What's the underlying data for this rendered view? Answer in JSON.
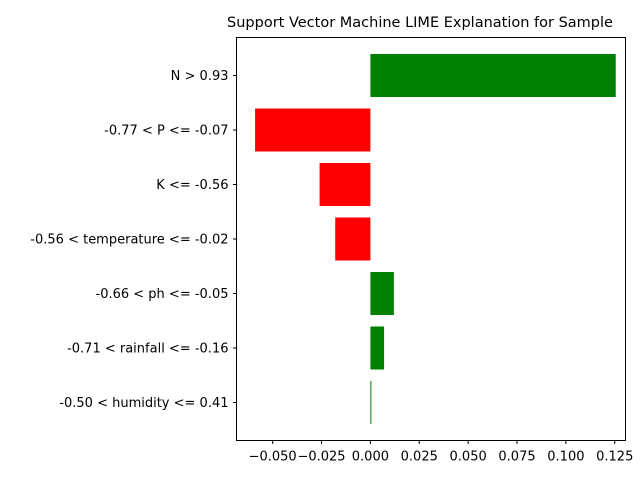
{
  "chart_data": {
    "type": "bar",
    "orientation": "horizontal",
    "title": "Support Vector Machine LIME Explanation for Sample",
    "xlabel": "",
    "ylabel": "",
    "xlim": [
      -0.0685,
      0.1305
    ],
    "grid": false,
    "legend": "none",
    "categories": [
      "N > 0.93",
      "-0.77 < P <= -0.07",
      "K <= -0.56",
      "-0.56 < temperature <= -0.02",
      "-0.66 < ph <= -0.05",
      "-0.71 < rainfall <= -0.16",
      "-0.50 < humidity <= 0.41"
    ],
    "values": [
      0.1255,
      -0.059,
      -0.026,
      -0.018,
      0.012,
      0.007,
      0.0005
    ],
    "xticks": [
      -0.05,
      -0.025,
      0.0,
      0.025,
      0.05,
      0.075,
      0.1,
      0.125
    ],
    "xtick_labels": [
      "−0.050",
      "−0.025",
      "0.000",
      "0.025",
      "0.050",
      "0.075",
      "0.100",
      "0.125"
    ],
    "colors": {
      "positive": "#008000",
      "negative": "#ff0000"
    }
  }
}
